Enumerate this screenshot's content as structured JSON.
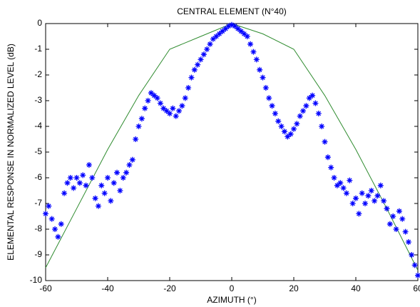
{
  "chart_data": {
    "type": "scatter",
    "title": "CENTRAL ELEMENT (N°40)",
    "xlabel": "AZIMUTH (°)",
    "ylabel": "ELEMENTAL RESPONSE IN NORMALIZED LEVEL (dB)",
    "xlim": [
      -60,
      60
    ],
    "ylim": [
      -10,
      0
    ],
    "xticks": [
      -60,
      -40,
      -20,
      0,
      20,
      40,
      60
    ],
    "yticks": [
      -10,
      -9,
      -8,
      -7,
      -6,
      -5,
      -4,
      -3,
      -2,
      -1,
      0
    ],
    "series": [
      {
        "type": "line",
        "color": "#2e8b2e",
        "x": [
          -60,
          -50,
          -40,
          -30,
          -20,
          -10,
          0,
          10,
          20,
          30,
          40,
          50,
          60
        ],
        "values": [
          -9.5,
          -7.2,
          -4.9,
          -2.8,
          -1.0,
          -0.5,
          0,
          -0.4,
          -1.0,
          -2.8,
          -4.9,
          -7.2,
          -9.6
        ]
      },
      {
        "type": "scatter",
        "color": "#0000ff",
        "x": [
          -60,
          -59,
          -58,
          -57,
          -56,
          -55,
          -54,
          -53,
          -52,
          -51,
          -50,
          -49,
          -48,
          -47,
          -46,
          -45,
          -44,
          -43,
          -42,
          -41,
          -40,
          -39,
          -38,
          -37,
          -36,
          -35,
          -34,
          -33,
          -32,
          -31,
          -30,
          -29,
          -28,
          -27,
          -26,
          -25,
          -24,
          -23,
          -22,
          -21,
          -20,
          -19,
          -18,
          -17,
          -16,
          -15,
          -14,
          -13,
          -12,
          -11,
          -10,
          -9,
          -8,
          -7,
          -6,
          -5,
          -4,
          -3,
          -2,
          -1,
          0,
          1,
          2,
          3,
          4,
          5,
          6,
          7,
          8,
          9,
          10,
          11,
          12,
          13,
          14,
          15,
          16,
          17,
          18,
          19,
          20,
          21,
          22,
          23,
          24,
          25,
          26,
          27,
          28,
          29,
          30,
          31,
          32,
          33,
          34,
          35,
          36,
          37,
          38,
          39,
          40,
          41,
          42,
          43,
          44,
          45,
          46,
          47,
          48,
          49,
          50,
          51,
          52,
          53,
          54,
          55,
          56,
          57,
          58,
          59,
          60
        ],
        "values": [
          -7.4,
          -7.1,
          -7.6,
          -8.0,
          -8.3,
          -7.8,
          -6.6,
          -6.2,
          -6.0,
          -6.4,
          -6.0,
          -6.2,
          -5.9,
          -6.3,
          -5.5,
          -6.0,
          -6.8,
          -7.1,
          -6.3,
          -6.6,
          -6.0,
          -6.9,
          -6.2,
          -5.8,
          -6.5,
          -6.0,
          -5.8,
          -5.5,
          -5.3,
          -4.5,
          -4.0,
          -3.7,
          -3.3,
          -3.0,
          -2.7,
          -2.8,
          -2.9,
          -3.1,
          -3.3,
          -3.4,
          -3.5,
          -3.3,
          -3.6,
          -3.4,
          -3.2,
          -2.9,
          -2.5,
          -2.1,
          -1.8,
          -1.6,
          -1.4,
          -1.2,
          -1.0,
          -0.8,
          -0.6,
          -0.5,
          -0.4,
          -0.3,
          -0.2,
          -0.1,
          -0.05,
          -0.1,
          -0.2,
          -0.3,
          -0.4,
          -0.5,
          -0.8,
          -1.1,
          -1.4,
          -1.8,
          -2.1,
          -2.5,
          -2.9,
          -3.2,
          -3.5,
          -3.8,
          -4.0,
          -4.2,
          -4.4,
          -4.3,
          -4.1,
          -3.9,
          -3.6,
          -3.4,
          -3.2,
          -2.9,
          -2.8,
          -3.1,
          -3.5,
          -4.0,
          -4.6,
          -5.2,
          -5.6,
          -6.0,
          -6.3,
          -6.2,
          -6.4,
          -6.6,
          -6.1,
          -7.0,
          -6.8,
          -7.4,
          -6.6,
          -7.0,
          -6.7,
          -6.5,
          -6.9,
          -6.7,
          -6.3,
          -6.9,
          -7.2,
          -7.8,
          -7.5,
          -8.0,
          -7.3,
          -7.6,
          -8.1,
          -8.5,
          -9.0,
          -9.4,
          -9.8
        ]
      }
    ]
  }
}
